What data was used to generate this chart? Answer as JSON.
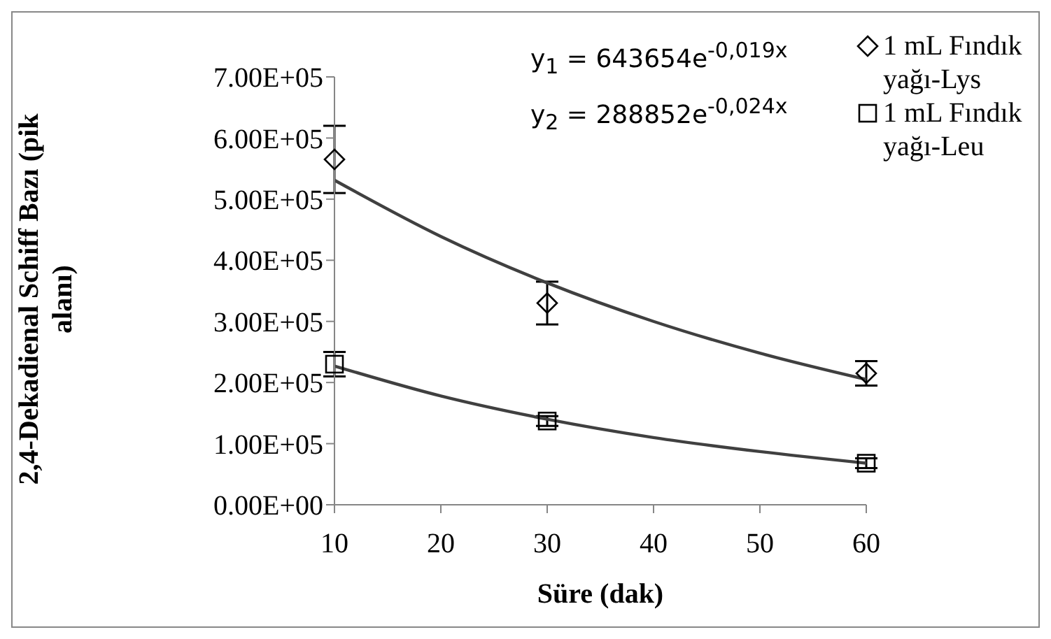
{
  "chart_data": {
    "type": "scatter",
    "xlabel": "Süre (dak)",
    "ylabel": "2,4-Dekadienal Schiff Bazı (pik alanı)",
    "x": [
      10,
      30,
      60
    ],
    "series": [
      {
        "name": "1 mL Fındık yağı-Lys",
        "color": "#000000",
        "marker": "diamond",
        "values": [
          565000,
          330000,
          215000
        ],
        "errors": [
          55000,
          35000,
          20000
        ]
      },
      {
        "name": "1 mL Fındık yağı-Leu",
        "color": "#000000",
        "marker": "square",
        "values": [
          230000,
          137000,
          68000
        ],
        "errors": [
          20000,
          8000,
          8000
        ]
      },
      {
        "type": "line",
        "color": "#404040",
        "x": [
          10,
          20,
          30,
          40,
          50,
          60
        ],
        "values": [
          531000,
          439000,
          363000,
          300000,
          248000,
          205000
        ]
      },
      {
        "type": "line",
        "color": "#404040",
        "x": [
          10,
          20,
          30,
          40,
          50,
          60
        ],
        "values": [
          227000,
          178000,
          140000,
          110000,
          87000,
          68000
        ]
      }
    ],
    "annotations": [
      "y$_{1}$ = 643654e$^{-0,019x}$",
      "y$_{2}$ = 288852e$^{-0,024x}$"
    ],
    "xlim": [
      10,
      60
    ],
    "xticks": [
      10,
      20,
      30,
      40,
      50,
      60
    ],
    "ylim": [
      0,
      700000
    ],
    "yticks": [
      {
        "value": 0,
        "label": "0.00E+00"
      },
      {
        "value": 100000,
        "label": "1.00E+05"
      },
      {
        "value": 200000,
        "label": "2.00E+05"
      },
      {
        "value": 300000,
        "label": "3.00E+05"
      },
      {
        "value": 400000,
        "label": "4.00E+05"
      },
      {
        "value": 500000,
        "label": "5.00E+05"
      },
      {
        "value": 600000,
        "label": "6.00E+05"
      },
      {
        "value": 700000,
        "label": "7.00E+05"
      }
    ],
    "grid": false,
    "legend": "top right"
  }
}
